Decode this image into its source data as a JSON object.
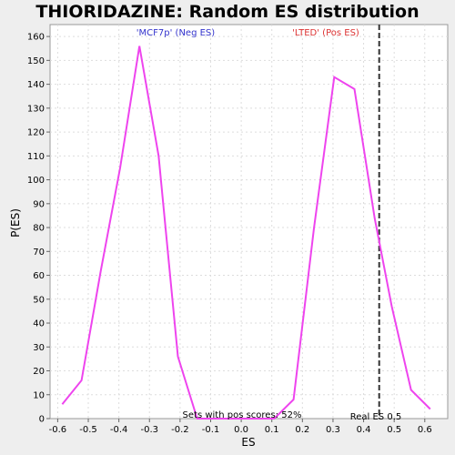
{
  "chart_data": {
    "type": "line",
    "title": "THIORIDAZINE: Random ES distribution",
    "xlabel": "ES",
    "ylabel": "P(ES)",
    "xlim": [
      -0.625,
      0.675
    ],
    "ylim": [
      0,
      165
    ],
    "xticks": [
      -0.6,
      -0.5,
      -0.4,
      -0.3,
      -0.2,
      -0.1,
      0.0,
      0.1,
      0.2,
      0.3,
      0.4,
      0.5,
      0.6
    ],
    "xtick_labels": [
      "-0.6",
      "-0.5",
      "-0.4",
      "-0.3",
      "-0.2",
      "-0.1",
      "0.0",
      "0.1",
      "0.2",
      "0.3",
      "0.4",
      "0.5",
      "0.6"
    ],
    "yticks": [
      0,
      10,
      20,
      30,
      40,
      50,
      60,
      70,
      80,
      90,
      100,
      110,
      120,
      130,
      140,
      150,
      160
    ],
    "grid": true,
    "series": [
      {
        "color": "#ee44ee",
        "x": [
          -0.585,
          -0.522,
          -0.459,
          -0.396,
          -0.333,
          -0.27,
          -0.207,
          -0.144,
          -0.081,
          -0.018,
          0.045,
          0.108,
          0.171,
          0.238,
          0.304,
          0.37,
          0.436,
          0.492,
          0.555,
          0.618
        ],
        "y": [
          6,
          16,
          62,
          105,
          156,
          110,
          26,
          0,
          0,
          0,
          0,
          0,
          8,
          80,
          143,
          138,
          84,
          47,
          12,
          4
        ]
      }
    ],
    "annotations": {
      "neg_label": "'MCF7p' (Neg ES)",
      "pos_label": "'LTED' (Pos ES)",
      "pos_scores": "Sets with pos scores: 52%",
      "real_es_label": "Real ES 0.5",
      "real_es_value": 0.451
    },
    "colors": {
      "line": "#ee44ee",
      "neg_label": "#3333cc",
      "pos_label": "#dd3333",
      "real_es_line": "#333333"
    }
  }
}
